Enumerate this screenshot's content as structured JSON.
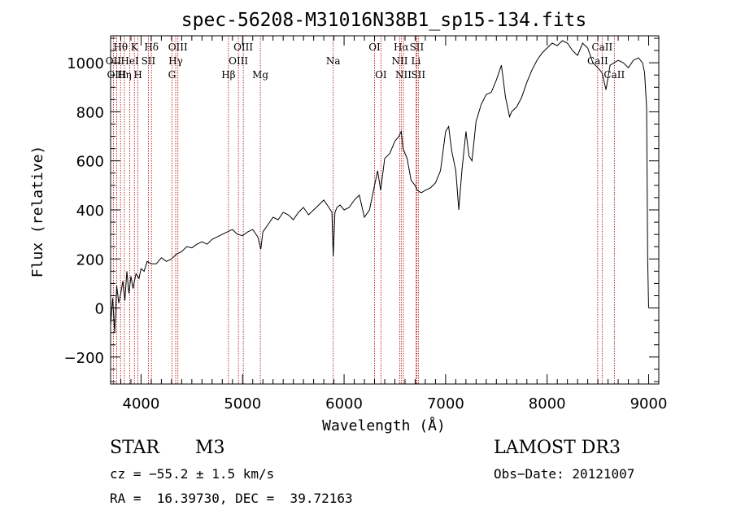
{
  "chart_data": {
    "type": "line",
    "title": "spec-56208-M31016N38B1_sp15-134.fits",
    "xlabel": "Wavelength (Å)",
    "ylabel": "Flux (relative)",
    "xlim": [
      3700,
      9100
    ],
    "ylim": [
      -310,
      1110
    ],
    "xticks": [
      4000,
      5000,
      6000,
      7000,
      8000,
      9000
    ],
    "xtick_labels": [
      "4000",
      "5000",
      "6000",
      "7000",
      "8000",
      "9000"
    ],
    "yticks": [
      -200,
      0,
      200,
      400,
      600,
      800,
      1000
    ],
    "ytick_labels": [
      "−200",
      "0",
      "200",
      "400",
      "600",
      "800",
      "1000"
    ],
    "series": [
      {
        "name": "spectrum",
        "x": [
          3700,
          3720,
          3740,
          3760,
          3780,
          3800,
          3820,
          3840,
          3860,
          3880,
          3900,
          3920,
          3950,
          3980,
          4000,
          4030,
          4060,
          4100,
          4150,
          4200,
          4250,
          4300,
          4350,
          4400,
          4450,
          4500,
          4550,
          4600,
          4650,
          4700,
          4750,
          4800,
          4850,
          4900,
          4950,
          5000,
          5050,
          5100,
          5150,
          5180,
          5200,
          5250,
          5300,
          5350,
          5400,
          5450,
          5500,
          5550,
          5600,
          5650,
          5700,
          5750,
          5800,
          5850,
          5880,
          5893,
          5910,
          5930,
          5960,
          6000,
          6050,
          6100,
          6150,
          6200,
          6250,
          6300,
          6330,
          6360,
          6400,
          6450,
          6500,
          6540,
          6563,
          6580,
          6620,
          6660,
          6700,
          6720,
          6760,
          6800,
          6850,
          6900,
          6950,
          7000,
          7030,
          7060,
          7100,
          7130,
          7160,
          7200,
          7230,
          7260,
          7300,
          7350,
          7400,
          7450,
          7500,
          7550,
          7590,
          7610,
          7630,
          7650,
          7700,
          7750,
          7800,
          7850,
          7900,
          7950,
          8000,
          8050,
          8100,
          8150,
          8200,
          8250,
          8300,
          8350,
          8400,
          8450,
          8500,
          8540,
          8580,
          8620,
          8660,
          8700,
          8750,
          8800,
          8850,
          8900,
          8940,
          8960,
          8980,
          8990,
          9000
        ],
        "y": [
          -70,
          40,
          -100,
          90,
          20,
          60,
          110,
          30,
          150,
          60,
          130,
          80,
          140,
          120,
          160,
          150,
          190,
          180,
          180,
          205,
          190,
          200,
          220,
          230,
          250,
          245,
          260,
          270,
          260,
          280,
          290,
          300,
          310,
          320,
          300,
          295,
          310,
          320,
          290,
          240,
          310,
          340,
          370,
          360,
          390,
          380,
          360,
          390,
          410,
          380,
          400,
          420,
          440,
          410,
          390,
          210,
          390,
          410,
          420,
          400,
          410,
          440,
          460,
          370,
          400,
          500,
          560,
          480,
          610,
          630,
          680,
          700,
          720,
          650,
          610,
          520,
          500,
          480,
          470,
          480,
          490,
          510,
          560,
          720,
          740,
          640,
          560,
          400,
          560,
          720,
          620,
          600,
          760,
          830,
          870,
          880,
          930,
          990,
          860,
          820,
          780,
          800,
          820,
          860,
          920,
          970,
          1010,
          1040,
          1060,
          1080,
          1070,
          1090,
          1080,
          1050,
          1030,
          1080,
          1060,
          1000,
          980,
          960,
          890,
          990,
          1000,
          1010,
          1000,
          980,
          1010,
          1020,
          1000,
          960,
          820,
          200,
          0
        ]
      }
    ],
    "line_markers": [
      {
        "label": "Hθ",
        "wavelength": 3798,
        "row": 1
      },
      {
        "label": "OII",
        "wavelength": 3727,
        "row": 2
      },
      {
        "label": "HeI",
        "wavelength": 3889,
        "row": 2
      },
      {
        "label": "OIII",
        "wavelength": 3760,
        "row": 3
      },
      {
        "label": "Hη",
        "wavelength": 3835,
        "row": 3
      },
      {
        "label": "K",
        "wavelength": 3934,
        "row": 1
      },
      {
        "label": "H",
        "wavelength": 3969,
        "row": 3
      },
      {
        "label": "SII",
        "wavelength": 4072,
        "row": 2
      },
      {
        "label": "Hδ",
        "wavelength": 4102,
        "row": 1
      },
      {
        "label": "OIII",
        "wavelength": 4363,
        "row": 1
      },
      {
        "label": "Hγ",
        "wavelength": 4341,
        "row": 2
      },
      {
        "label": "G",
        "wavelength": 4304,
        "row": 3
      },
      {
        "label": "Hβ",
        "wavelength": 4861,
        "row": 3
      },
      {
        "label": "OIII",
        "wavelength": 5007,
        "row": 1
      },
      {
        "label": "OIII",
        "wavelength": 4959,
        "row": 2
      },
      {
        "label": "Mg",
        "wavelength": 5175,
        "row": 3
      },
      {
        "label": "Na",
        "wavelength": 5893,
        "row": 2
      },
      {
        "label": "OI",
        "wavelength": 6300,
        "row": 1
      },
      {
        "label": "OI",
        "wavelength": 6363,
        "row": 3
      },
      {
        "label": "Hα",
        "wavelength": 6563,
        "row": 1
      },
      {
        "label": "NII",
        "wavelength": 6548,
        "row": 2
      },
      {
        "label": "NII",
        "wavelength": 6584,
        "row": 3
      },
      {
        "label": "SII",
        "wavelength": 6716,
        "row": 1
      },
      {
        "label": "Li",
        "wavelength": 6708,
        "row": 2
      },
      {
        "label": "SII",
        "wavelength": 6731,
        "row": 3
      },
      {
        "label": "CaII",
        "wavelength": 8542,
        "row": 1
      },
      {
        "label": "CaII",
        "wavelength": 8498,
        "row": 2
      },
      {
        "label": "CaII",
        "wavelength": 8662,
        "row": 3
      }
    ]
  },
  "footer": {
    "object_class": "STAR",
    "subclass": "M3",
    "survey": "LAMOST DR3",
    "redshift": "cz = −55.2 ± 1.5 km/s",
    "obs_date": "Obs−Date: 20121007",
    "coords": "RA =  16.39730, DEC =  39.72163"
  }
}
